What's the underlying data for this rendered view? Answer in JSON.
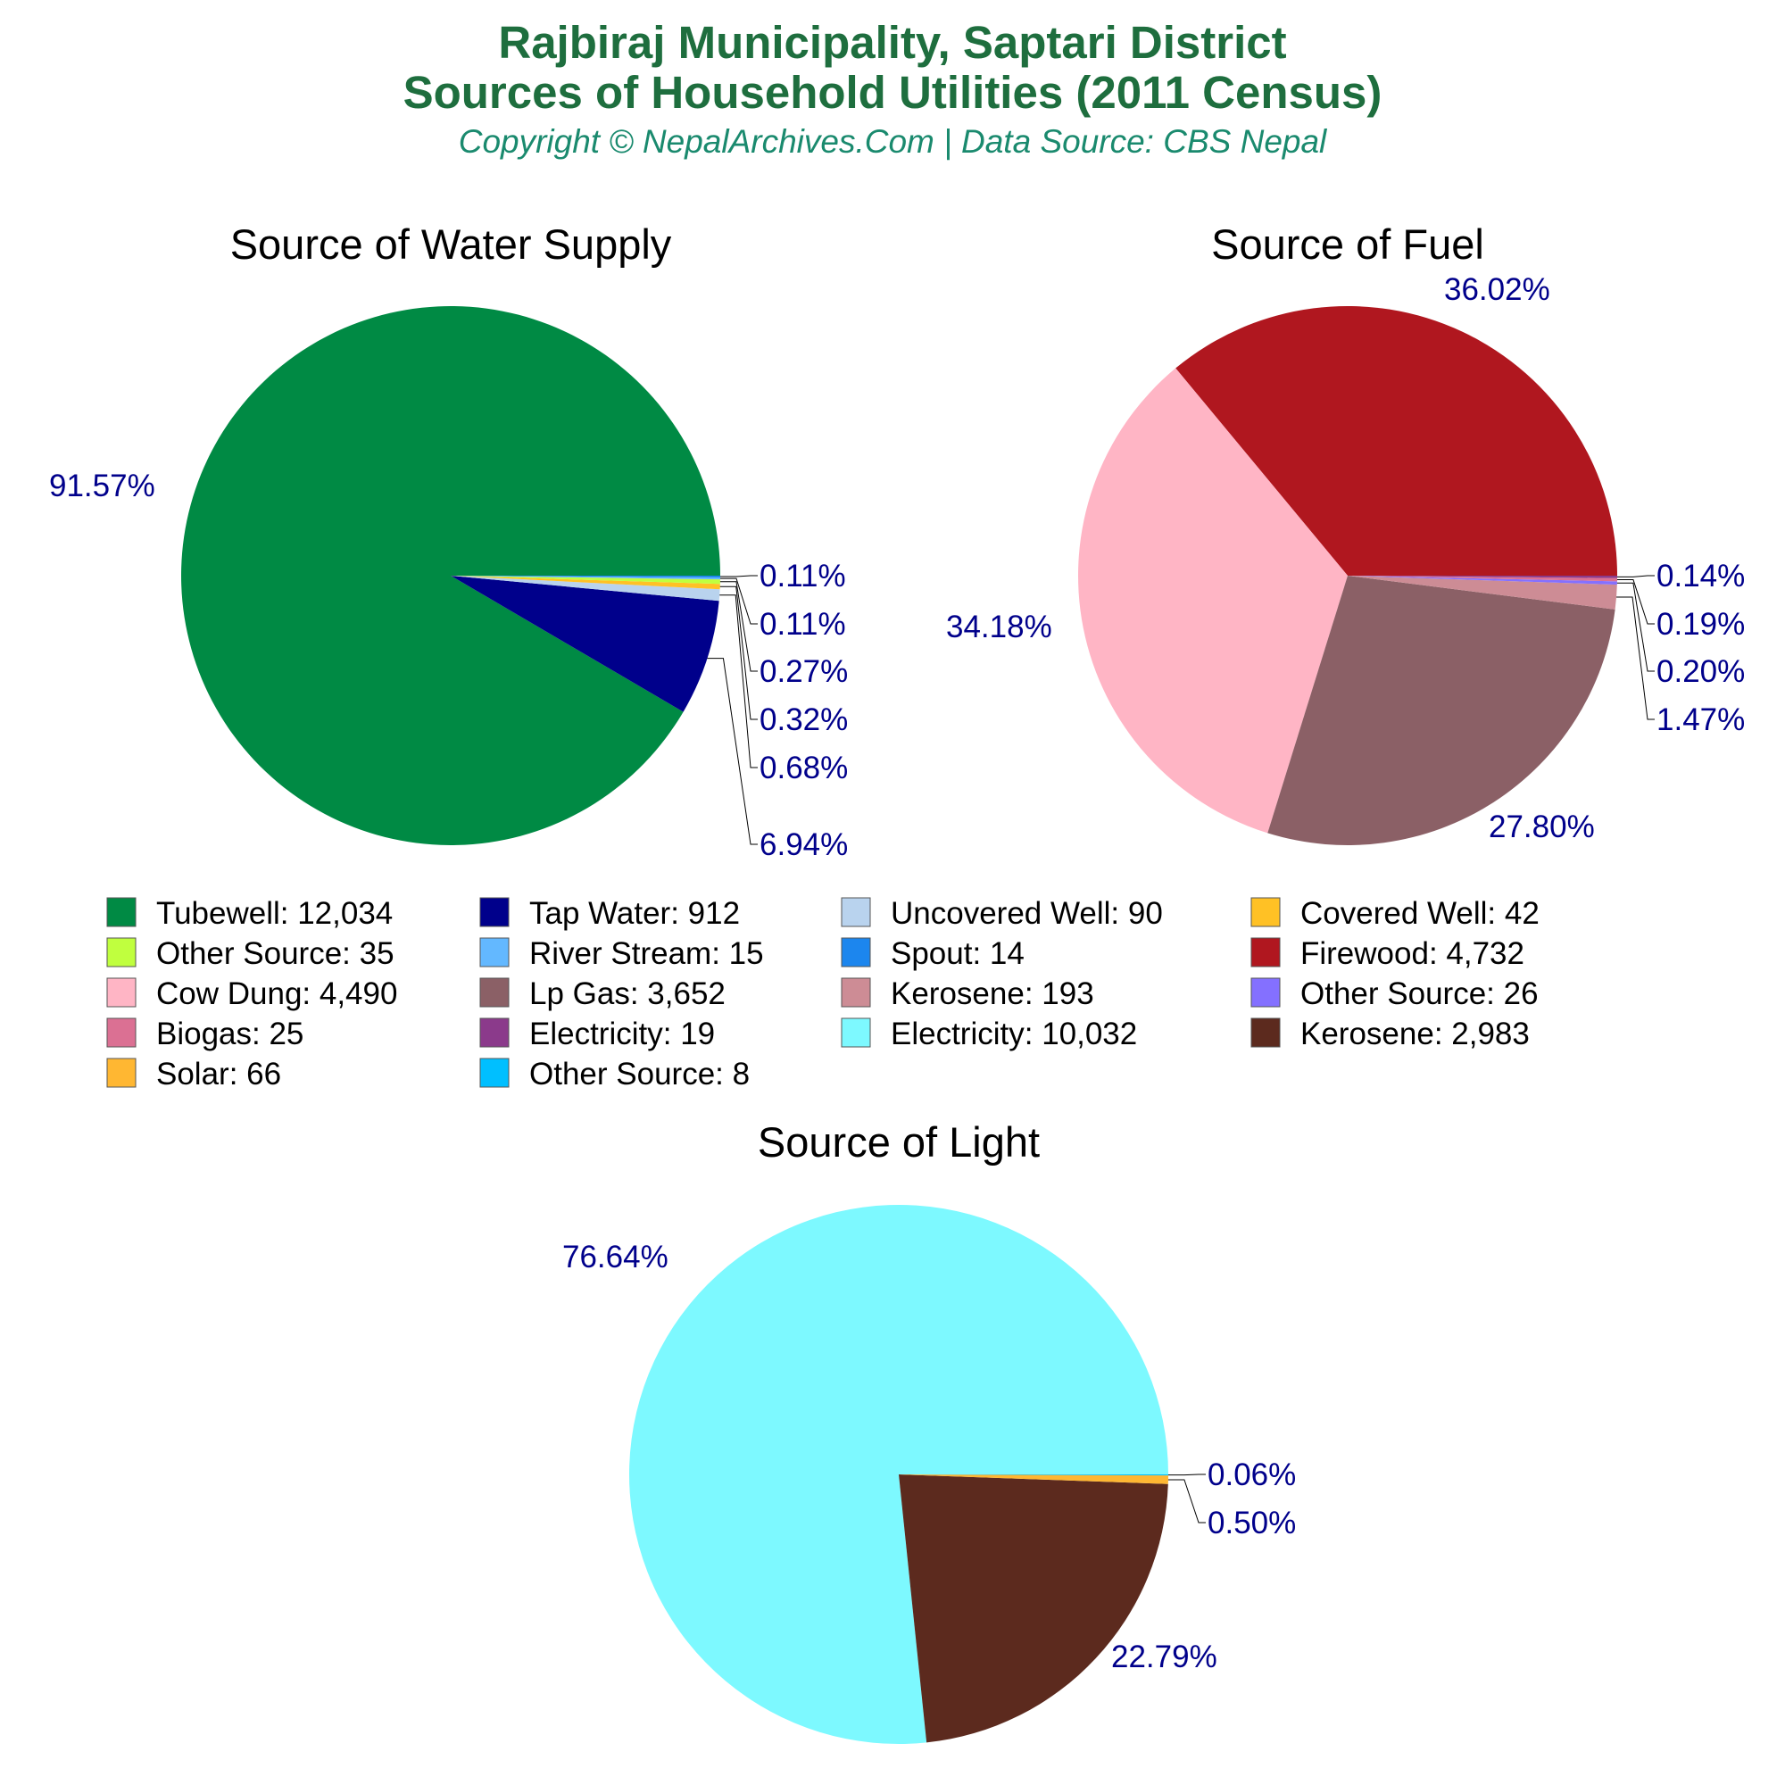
{
  "header": {
    "title_line1": "Rajbiraj Municipality, Saptari District",
    "title_line2": "Sources of Household Utilities (2011 Census)",
    "subtitle": "Copyright © NepalArchives.Com | Data Source: CBS Nepal"
  },
  "colors": {
    "title": "#1e6e3e",
    "subtitle": "#1a8a6e",
    "percent_label": "#00008b"
  },
  "chart_data": [
    {
      "type": "pie",
      "title": "Source of Water Supply",
      "slices": [
        {
          "name": "Tubewell",
          "value": 12034,
          "percent_label": "91.57%",
          "color": "#008a44"
        },
        {
          "name": "Tap Water",
          "value": 912,
          "percent_label": "6.94%",
          "color": "#00008b"
        },
        {
          "name": "Uncovered Well",
          "value": 90,
          "percent_label": "0.68%",
          "color": "#b9d3ee"
        },
        {
          "name": "Covered Well",
          "value": 42,
          "percent_label": "0.32%",
          "color": "#ffc125"
        },
        {
          "name": "Other Source",
          "value": 35,
          "percent_label": "0.27%",
          "color": "#c0ff3e"
        },
        {
          "name": "River Stream",
          "value": 15,
          "percent_label": "0.11%",
          "color": "#63b8ff"
        },
        {
          "name": "Spout",
          "value": 14,
          "percent_label": "0.11%",
          "color": "#1c86ee"
        }
      ]
    },
    {
      "type": "pie",
      "title": "Source of Fuel",
      "slices": [
        {
          "name": "Firewood",
          "value": 4732,
          "percent_label": "36.02%",
          "color": "#b0171f"
        },
        {
          "name": "Cow Dung",
          "value": 4490,
          "percent_label": "34.18%",
          "color": "#ffb5c5"
        },
        {
          "name": "Lp Gas",
          "value": 3652,
          "percent_label": "27.80%",
          "color": "#8b6066"
        },
        {
          "name": "Kerosene",
          "value": 193,
          "percent_label": "1.47%",
          "color": "#cd8c95"
        },
        {
          "name": "Other Source",
          "value": 26,
          "percent_label": "0.20%",
          "color": "#8470ff"
        },
        {
          "name": "Biogas",
          "value": 25,
          "percent_label": "0.19%",
          "color": "#db7093"
        },
        {
          "name": "Electricity",
          "value": 19,
          "percent_label": "0.14%",
          "color": "#8b3a8b"
        }
      ]
    },
    {
      "type": "pie",
      "title": "Source of Light",
      "slices": [
        {
          "name": "Electricity",
          "value": 10032,
          "percent_label": "76.64%",
          "color": "#7df9ff"
        },
        {
          "name": "Kerosene",
          "value": 2983,
          "percent_label": "22.79%",
          "color": "#5c2a1e"
        },
        {
          "name": "Solar",
          "value": 66,
          "percent_label": "0.50%",
          "color": "#ffb732"
        },
        {
          "name": "Other Source",
          "value": 8,
          "percent_label": "0.06%",
          "color": "#00bfff"
        }
      ]
    }
  ],
  "legend": [
    {
      "label": "Tubewell: 12,034",
      "color": "#008a44"
    },
    {
      "label": "Tap Water: 912",
      "color": "#00008b"
    },
    {
      "label": "Uncovered Well: 90",
      "color": "#b9d3ee"
    },
    {
      "label": "Covered Well: 42",
      "color": "#ffc125"
    },
    {
      "label": "Other Source: 35",
      "color": "#c0ff3e"
    },
    {
      "label": "River Stream: 15",
      "color": "#63b8ff"
    },
    {
      "label": "Spout: 14",
      "color": "#1c86ee"
    },
    {
      "label": "Firewood: 4,732",
      "color": "#b0171f"
    },
    {
      "label": "Cow Dung: 4,490",
      "color": "#ffb5c5"
    },
    {
      "label": "Lp Gas: 3,652",
      "color": "#8b6066"
    },
    {
      "label": "Kerosene: 193",
      "color": "#cd8c95"
    },
    {
      "label": "Other Source: 26",
      "color": "#8470ff"
    },
    {
      "label": "Biogas: 25",
      "color": "#db7093"
    },
    {
      "label": "Electricity: 19",
      "color": "#8b3a8b"
    },
    {
      "label": "Electricity: 10,032",
      "color": "#7df9ff"
    },
    {
      "label": "Kerosene: 2,983",
      "color": "#5c2a1e"
    },
    {
      "label": "Solar: 66",
      "color": "#ffb732"
    },
    {
      "label": "Other Source: 8",
      "color": "#00bfff"
    }
  ]
}
